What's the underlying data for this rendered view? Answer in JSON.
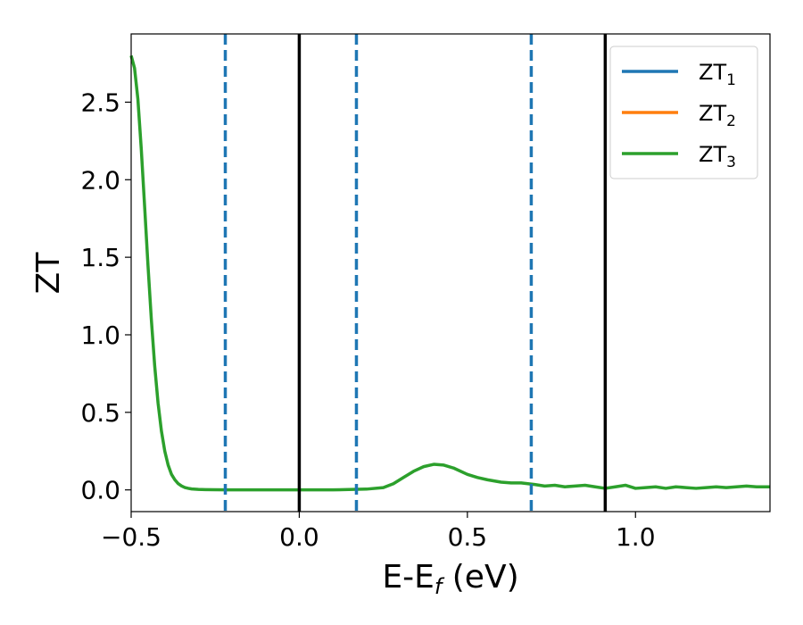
{
  "chart_data": {
    "type": "line",
    "xlabel": "E-E",
    "xlabel_sub": "f",
    "xlabel_suffix": " (eV)",
    "ylabel": "ZT",
    "xlim": [
      -0.5,
      1.4
    ],
    "ylim": [
      -0.14,
      2.94
    ],
    "x_ticks": [
      {
        "value": -0.5,
        "label": "−0.5"
      },
      {
        "value": 0.0,
        "label": "0.0"
      },
      {
        "value": 0.5,
        "label": "0.5"
      },
      {
        "value": 1.0,
        "label": "1.0"
      }
    ],
    "y_ticks": [
      {
        "value": 0.0,
        "label": "0.0"
      },
      {
        "value": 0.5,
        "label": "0.5"
      },
      {
        "value": 1.0,
        "label": "1.0"
      },
      {
        "value": 1.5,
        "label": "1.5"
      },
      {
        "value": 2.0,
        "label": "2.0"
      },
      {
        "value": 2.5,
        "label": "2.5"
      }
    ],
    "grid": false,
    "legend_position": "top-right",
    "series": [
      {
        "name": "ZT",
        "name_sub": "1",
        "color": "#1f77b4"
      },
      {
        "name": "ZT",
        "name_sub": "2",
        "color": "#ff7f0e"
      },
      {
        "name": "ZT",
        "name_sub": "3",
        "color": "#2ca02c"
      }
    ],
    "curve": {
      "color": "#2ca02c",
      "x": [
        -0.5,
        -0.49,
        -0.48,
        -0.47,
        -0.46,
        -0.45,
        -0.44,
        -0.43,
        -0.42,
        -0.41,
        -0.4,
        -0.39,
        -0.38,
        -0.37,
        -0.36,
        -0.35,
        -0.34,
        -0.33,
        -0.32,
        -0.3,
        -0.28,
        -0.25,
        -0.2,
        -0.1,
        0.0,
        0.1,
        0.2,
        0.25,
        0.28,
        0.31,
        0.34,
        0.37,
        0.4,
        0.43,
        0.46,
        0.5,
        0.53,
        0.56,
        0.6,
        0.63,
        0.66,
        0.7,
        0.73,
        0.76,
        0.79,
        0.82,
        0.85,
        0.88,
        0.91,
        0.94,
        0.97,
        1.0,
        1.03,
        1.06,
        1.09,
        1.12,
        1.15,
        1.18,
        1.21,
        1.24,
        1.27,
        1.3,
        1.33,
        1.36,
        1.4
      ],
      "y": [
        2.8,
        2.72,
        2.52,
        2.2,
        1.83,
        1.45,
        1.1,
        0.8,
        0.56,
        0.38,
        0.25,
        0.16,
        0.1,
        0.065,
        0.04,
        0.025,
        0.015,
        0.01,
        0.006,
        0.003,
        0.002,
        0.001,
        0.0,
        0.0,
        0.0,
        0.0,
        0.005,
        0.015,
        0.04,
        0.08,
        0.12,
        0.15,
        0.165,
        0.16,
        0.14,
        0.1,
        0.08,
        0.065,
        0.05,
        0.045,
        0.045,
        0.035,
        0.025,
        0.03,
        0.02,
        0.025,
        0.03,
        0.02,
        0.01,
        0.02,
        0.03,
        0.01,
        0.015,
        0.02,
        0.01,
        0.02,
        0.015,
        0.01,
        0.015,
        0.02,
        0.015,
        0.02,
        0.025,
        0.02,
        0.02
      ]
    },
    "vlines_solid": {
      "color": "#000000",
      "x": [
        0.0,
        0.91
      ]
    },
    "vlines_dashed": {
      "color": "#1f77b4",
      "x": [
        -0.22,
        0.17,
        0.69
      ]
    }
  }
}
